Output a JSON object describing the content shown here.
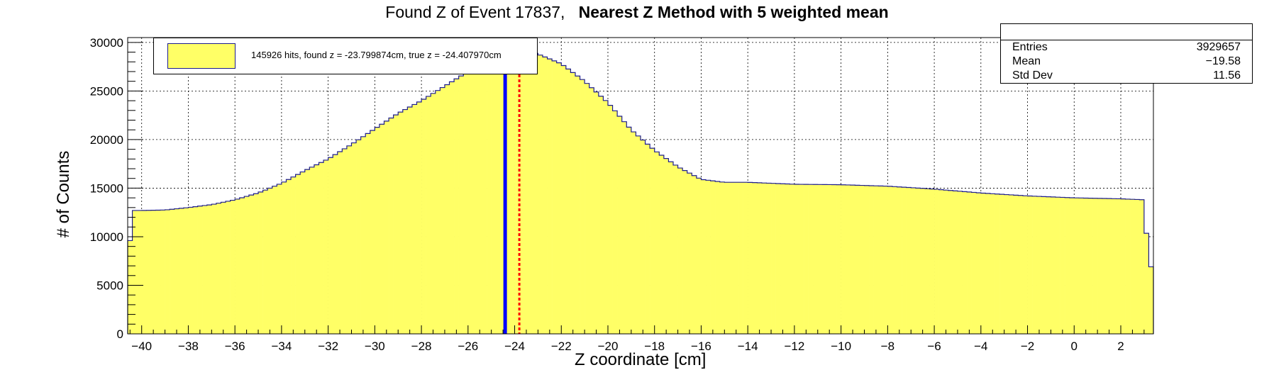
{
  "title": {
    "prefix": "Found Z of Event 17837,",
    "bold": "Nearest Z Method with 5 weighted mean"
  },
  "legend": {
    "label": "145926 hits, found z = -23.799874cm, true z = -24.407970cm",
    "fill_color": "#ffff66",
    "line_color": "#1c1c8c"
  },
  "stats": {
    "entries_label": "Entries",
    "entries_value": "3929657",
    "mean_label": "Mean",
    "mean_value": "−19.58",
    "std_label": "Std Dev",
    "std_value": "11.56"
  },
  "chart_data": {
    "type": "histogram",
    "title": "Found Z of Event 17837,   Nearest Z Method with 5 weighted mean",
    "xlabel": "Z coordinate [cm]",
    "ylabel": "# of Counts",
    "xlim": [
      -40.6,
      3.4
    ],
    "ylim": [
      0,
      30500
    ],
    "grid": true,
    "bin_width": 0.2,
    "x_ticks": [
      -40,
      -38,
      -36,
      -34,
      -32,
      -30,
      -28,
      -26,
      -24,
      -22,
      -20,
      -18,
      -16,
      -14,
      -12,
      -10,
      -8,
      -6,
      -4,
      -2,
      0,
      2
    ],
    "y_ticks": [
      0,
      5000,
      10000,
      15000,
      20000,
      25000,
      30000
    ],
    "profile_x": [
      -40.6,
      -40.4,
      -40.0,
      -39.0,
      -38.0,
      -37.0,
      -36.0,
      -35.0,
      -34.0,
      -33.0,
      -32.0,
      -31.0,
      -30.0,
      -29.0,
      -28.0,
      -27.0,
      -26.0,
      -25.0,
      -24.6,
      -24.0,
      -23.4,
      -23.0,
      -22.0,
      -21.0,
      -20.0,
      -19.0,
      -18.0,
      -17.0,
      -16.0,
      -15.0,
      -14.0,
      -13.0,
      -12.0,
      -10.0,
      -8.0,
      -6.0,
      -4.0,
      -2.0,
      0.0,
      2.0,
      3.0,
      3.2,
      3.4
    ],
    "profile_y": [
      6500,
      12700,
      12700,
      12750,
      13000,
      13300,
      13800,
      14500,
      15500,
      16800,
      18000,
      19500,
      21100,
      22700,
      24000,
      25500,
      27000,
      28300,
      28700,
      29000,
      29100,
      28800,
      27800,
      26000,
      23800,
      21000,
      18900,
      17200,
      15900,
      15600,
      15600,
      15500,
      15400,
      15350,
      15200,
      14900,
      14500,
      14200,
      14000,
      13900,
      13800,
      6900,
      6900
    ],
    "found_z": -23.799874,
    "true_z": -24.40797,
    "fill_color": "#ffff66",
    "line_color": "#1c1c8c",
    "true_z_color": "#0000ff",
    "found_z_color": "#ff0000"
  }
}
